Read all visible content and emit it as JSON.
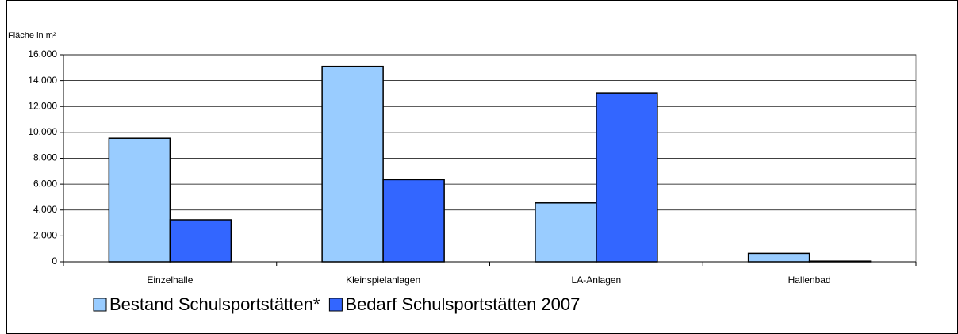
{
  "chart_data": {
    "type": "bar",
    "y_label": "Fläche in m²",
    "categories": [
      "Einzelhalle",
      "Kleinspielanlagen",
      "LA-Anlagen",
      "Hallenbad"
    ],
    "series": [
      {
        "name": "Bestand Schulsportstätten*",
        "color": "#99ccff",
        "values": [
          9550,
          15100,
          4550,
          650
        ]
      },
      {
        "name": "Bedarf Schulsportstätten 2007",
        "color": "#3366ff",
        "values": [
          3250,
          6350,
          13050,
          50
        ]
      }
    ],
    "ylim": [
      0,
      16000
    ],
    "yticks": [
      0,
      {
        "value": 2000,
        "label": "2.000"
      },
      {
        "value": 4000,
        "label": "4.000"
      },
      {
        "value": 6000,
        "label": "6.000"
      },
      {
        "value": 8000,
        "label": "8.000"
      },
      {
        "value": 10000,
        "label": "10.000"
      },
      {
        "value": 12000,
        "label": "12.000"
      },
      {
        "value": 14000,
        "label": "14.000"
      },
      {
        "value": 16000,
        "label": "16.000"
      }
    ],
    "grid": true,
    "legend": "bottom"
  }
}
